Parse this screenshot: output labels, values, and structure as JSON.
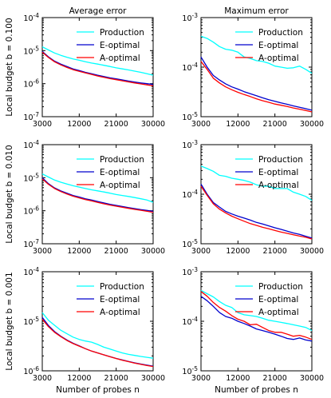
{
  "figure": {
    "col_titles": [
      "Average error",
      "Maximum error"
    ],
    "row_labels": [
      "Local budget b = 0.100",
      "Local budget b = 0.010",
      "Local budget b = 0.001"
    ],
    "xlabel": "Number of probes n",
    "legend": [
      "Production",
      "E-optimal",
      "A-optimal"
    ]
  },
  "chart_data": [
    {
      "type": "line",
      "title": "Average error",
      "ylabel": "Local budget b = 0.100",
      "xlabel": "",
      "yscale": "log",
      "ylim": [
        1e-07,
        0.0001
      ],
      "yticks": [
        "10^-7",
        "10^-6",
        "10^-5",
        "10^-4"
      ],
      "xlim": [
        3000,
        30000
      ],
      "xticks": [
        "3000",
        "12000",
        "21000",
        "30000"
      ],
      "legend_position": "top-right",
      "x": [
        3000,
        4500,
        6000,
        7500,
        9000,
        10500,
        12000,
        13500,
        15000,
        16500,
        18000,
        19500,
        21000,
        22500,
        24000,
        25500,
        27000,
        28500,
        30000
      ],
      "series": [
        {
          "name": "Production",
          "color": "#00ffff",
          "values": [
            1.3e-05,
            1.05e-05,
            8.5e-06,
            7.2e-06,
            6.3e-06,
            5.6e-06,
            5.1e-06,
            4.6e-06,
            4.2e-06,
            3.9e-06,
            3.6e-06,
            3.3e-06,
            3e-06,
            2.8e-06,
            2.6e-06,
            2.4e-06,
            2.2e-06,
            2e-06,
            1.8e-06
          ]
        },
        {
          "name": "E-optimal",
          "color": "#0000cd",
          "values": [
            9.5e-06,
            6.5e-06,
            4.8e-06,
            3.9e-06,
            3.3e-06,
            2.8e-06,
            2.5e-06,
            2.2e-06,
            2e-06,
            1.8e-06,
            1.65e-06,
            1.5e-06,
            1.4e-06,
            1.3e-06,
            1.2e-06,
            1.12e-06,
            1.05e-06,
            1e-06,
            9.5e-07
          ]
        },
        {
          "name": "A-optimal",
          "color": "#ff0000",
          "values": [
            9e-06,
            6.2e-06,
            4.6e-06,
            3.7e-06,
            3.1e-06,
            2.65e-06,
            2.35e-06,
            2.1e-06,
            1.9e-06,
            1.7e-06,
            1.55e-06,
            1.42e-06,
            1.32e-06,
            1.22e-06,
            1.13e-06,
            1.05e-06,
            9.8e-07,
            9.2e-07,
            8.6e-07
          ]
        }
      ]
    },
    {
      "type": "line",
      "title": "Maximum error",
      "ylabel": "",
      "xlabel": "",
      "yscale": "log",
      "ylim": [
        1e-05,
        0.001
      ],
      "yticks": [
        "10^-5",
        "10^-4",
        "10^-3"
      ],
      "xlim": [
        3000,
        30000
      ],
      "xticks": [
        "3000",
        "12000",
        "21000",
        "30000"
      ],
      "legend_position": "top-right",
      "x": [
        3000,
        4500,
        6000,
        7500,
        9000,
        10500,
        12000,
        13500,
        15000,
        16500,
        18000,
        19500,
        21000,
        22500,
        24000,
        25500,
        27000,
        28500,
        30000
      ],
      "series": [
        {
          "name": "Production",
          "color": "#00ffff",
          "values": [
            0.00042,
            0.00038,
            0.00032,
            0.00026,
            0.00023,
            0.00022,
            0.0002,
            0.00016,
            0.00015,
            0.000135,
            0.00013,
            0.00012,
            0.000105,
            0.0001,
            9.5e-05,
            9.7e-05,
            0.000105,
            9e-05,
            7.5e-05
          ]
        },
        {
          "name": "E-optimal",
          "color": "#0000cd",
          "values": [
            0.00016,
            0.0001,
            6.8e-05,
            5.5e-05,
            4.6e-05,
            4e-05,
            3.6e-05,
            3.2e-05,
            2.9e-05,
            2.65e-05,
            2.4e-05,
            2.2e-05,
            2.05e-05,
            1.9e-05,
            1.78e-05,
            1.65e-05,
            1.55e-05,
            1.45e-05,
            1.35e-05
          ]
        },
        {
          "name": "A-optimal",
          "color": "#ff0000",
          "values": [
            0.00013,
            9e-05,
            6e-05,
            4.8e-05,
            4e-05,
            3.5e-05,
            3.1e-05,
            2.8e-05,
            2.55e-05,
            2.3e-05,
            2.1e-05,
            1.95e-05,
            1.8e-05,
            1.7e-05,
            1.6e-05,
            1.5e-05,
            1.42e-05,
            1.33e-05,
            1.25e-05
          ]
        }
      ]
    },
    {
      "type": "line",
      "title": "",
      "ylabel": "Local budget b = 0.010",
      "xlabel": "",
      "yscale": "log",
      "ylim": [
        1e-07,
        0.0001
      ],
      "yticks": [
        "10^-7",
        "10^-6",
        "10^-5",
        "10^-4"
      ],
      "xlim": [
        3000,
        30000
      ],
      "xticks": [
        "3000",
        "12000",
        "21000",
        "30000"
      ],
      "legend_position": "top-right",
      "x": [
        3000,
        4500,
        6000,
        7500,
        9000,
        10500,
        12000,
        13500,
        15000,
        16500,
        18000,
        19500,
        21000,
        22500,
        24000,
        25500,
        27000,
        28500,
        30000
      ],
      "series": [
        {
          "name": "Production",
          "color": "#00ffff",
          "values": [
            1.3e-05,
            1.05e-05,
            8.5e-06,
            7.3e-06,
            6.4e-06,
            5.7e-06,
            5.2e-06,
            4.7e-06,
            4.3e-06,
            4e-06,
            3.7e-06,
            3.4e-06,
            3.1e-06,
            2.9e-06,
            2.7e-06,
            2.5e-06,
            2.3e-06,
            2.1e-06,
            1.8e-06
          ]
        },
        {
          "name": "E-optimal",
          "color": "#0000cd",
          "values": [
            1e-05,
            6.6e-06,
            4.9e-06,
            4e-06,
            3.4e-06,
            2.9e-06,
            2.6e-06,
            2.3e-06,
            2.1e-06,
            1.9e-06,
            1.72e-06,
            1.57e-06,
            1.45e-06,
            1.34e-06,
            1.24e-06,
            1.16e-06,
            1.08e-06,
            1.02e-06,
            9.6e-07
          ]
        },
        {
          "name": "A-optimal",
          "color": "#ff0000",
          "values": [
            9.2e-06,
            6.3e-06,
            4.7e-06,
            3.8e-06,
            3.2e-06,
            2.75e-06,
            2.45e-06,
            2.18e-06,
            1.98e-06,
            1.78e-06,
            1.62e-06,
            1.48e-06,
            1.37e-06,
            1.27e-06,
            1.18e-06,
            1.1e-06,
            1.03e-06,
            9.6e-07,
            9e-07
          ]
        }
      ]
    },
    {
      "type": "line",
      "title": "",
      "ylabel": "",
      "xlabel": "",
      "yscale": "log",
      "ylim": [
        1e-05,
        0.001
      ],
      "yticks": [
        "10^-5",
        "10^-4",
        "10^-3"
      ],
      "xlim": [
        3000,
        30000
      ],
      "xticks": [
        "3000",
        "12000",
        "21000",
        "30000"
      ],
      "legend_position": "top-right",
      "x": [
        3000,
        4500,
        6000,
        7500,
        9000,
        10500,
        12000,
        13500,
        15000,
        16500,
        18000,
        19500,
        21000,
        22500,
        24000,
        25500,
        27000,
        28500,
        30000
      ],
      "series": [
        {
          "name": "Production",
          "color": "#00ffff",
          "values": [
            0.00037,
            0.00033,
            0.00029,
            0.00024,
            0.00023,
            0.00021,
            0.0002,
            0.00019,
            0.000175,
            0.000155,
            0.000145,
            0.000145,
            0.00013,
            0.00013,
            0.00013,
            0.00011,
            0.0001,
            9e-05,
            7.5e-05
          ]
        },
        {
          "name": "E-optimal",
          "color": "#0000cd",
          "values": [
            0.00016,
            0.0001,
            6.8e-05,
            5.5e-05,
            4.5e-05,
            4e-05,
            3.6e-05,
            3.3e-05,
            3e-05,
            2.7e-05,
            2.5e-05,
            2.3e-05,
            2.1e-05,
            1.95e-05,
            1.8e-05,
            1.65e-05,
            1.55e-05,
            1.42e-05,
            1.3e-05
          ]
        },
        {
          "name": "A-optimal",
          "color": "#ff0000",
          "values": [
            0.000145,
            9.5e-05,
            6.4e-05,
            5e-05,
            4.2e-05,
            3.6e-05,
            3.2e-05,
            2.85e-05,
            2.55e-05,
            2.35e-05,
            2.15e-05,
            2e-05,
            1.85e-05,
            1.72e-05,
            1.62e-05,
            1.52e-05,
            1.43e-05,
            1.35e-05,
            1.25e-05
          ]
        }
      ]
    },
    {
      "type": "line",
      "title": "",
      "ylabel": "Local budget b = 0.001",
      "xlabel": "Number of probes n",
      "yscale": "log",
      "ylim": [
        1e-06,
        0.0001
      ],
      "yticks": [
        "10^-6",
        "10^-5",
        "10^-4"
      ],
      "xlim": [
        3000,
        30000
      ],
      "xticks": [
        "3000",
        "12000",
        "21000",
        "30000"
      ],
      "legend_position": "top-right",
      "x": [
        3000,
        4500,
        6000,
        7500,
        9000,
        10500,
        12000,
        13500,
        15000,
        16500,
        18000,
        19500,
        21000,
        22500,
        24000,
        25500,
        27000,
        28500,
        30000
      ],
      "series": [
        {
          "name": "Production",
          "color": "#00ffff",
          "values": [
            1.5e-05,
            1.05e-05,
            8.3e-06,
            6.6e-06,
            5.6e-06,
            4.8e-06,
            4.3e-06,
            4e-06,
            3.8e-06,
            3.4e-06,
            3e-06,
            2.75e-06,
            2.5e-06,
            2.3e-06,
            2.15e-06,
            2.05e-06,
            1.95e-06,
            1.87e-06,
            1.8e-06
          ]
        },
        {
          "name": "E-optimal",
          "color": "#0000cd",
          "values": [
            1.2e-05,
            8.2e-06,
            6.2e-06,
            5e-06,
            4.2e-06,
            3.6e-06,
            3.2e-06,
            2.8e-06,
            2.5e-06,
            2.3e-06,
            2.1e-06,
            1.93e-06,
            1.78e-06,
            1.66e-06,
            1.55e-06,
            1.45e-06,
            1.37e-06,
            1.3e-06,
            1.24e-06
          ]
        },
        {
          "name": "A-optimal",
          "color": "#ff0000",
          "values": [
            1.1e-05,
            7.8e-06,
            6e-06,
            4.9e-06,
            4.1e-06,
            3.55e-06,
            3.15e-06,
            2.8e-06,
            2.5e-06,
            2.3e-06,
            2.1e-06,
            1.92e-06,
            1.77e-06,
            1.64e-06,
            1.53e-06,
            1.43e-06,
            1.35e-06,
            1.28e-06,
            1.22e-06
          ]
        }
      ]
    },
    {
      "type": "line",
      "title": "",
      "ylabel": "",
      "xlabel": "Number of probes n",
      "yscale": "log",
      "ylim": [
        1e-05,
        0.001
      ],
      "yticks": [
        "10^-5",
        "10^-4",
        "10^-3"
      ],
      "xlim": [
        3000,
        30000
      ],
      "xticks": [
        "3000",
        "12000",
        "21000",
        "30000"
      ],
      "legend_position": "top-right",
      "x": [
        3000,
        4500,
        6000,
        7500,
        9000,
        10500,
        12000,
        13500,
        15000,
        16500,
        18000,
        19500,
        21000,
        22500,
        24000,
        25500,
        27000,
        28500,
        30000
      ],
      "series": [
        {
          "name": "Production",
          "color": "#00ffff",
          "values": [
            0.00042,
            0.00036,
            0.00031,
            0.00025,
            0.00021,
            0.00019,
            0.00015,
            0.000135,
            0.00013,
            0.000125,
            0.000115,
            0.000105,
            0.0001,
            9.5e-05,
            9e-05,
            8.5e-05,
            8e-05,
            7.5e-05,
            6.5e-05
          ]
        },
        {
          "name": "E-optimal",
          "color": "#0000cd",
          "values": [
            0.00032,
            0.00026,
            0.0002,
            0.00015,
            0.000125,
            0.000115,
            0.0001,
            9e-05,
            8e-05,
            7e-05,
            6.5e-05,
            6e-05,
            5.5e-05,
            5e-05,
            4.5e-05,
            4.3e-05,
            4.6e-05,
            4.2e-05,
            4e-05
          ]
        },
        {
          "name": "A-optimal",
          "color": "#ff0000",
          "values": [
            0.0004,
            0.00032,
            0.00024,
            0.00019,
            0.00016,
            0.00013,
            0.00011,
            0.0001,
            8.5e-05,
            8.7e-05,
            7.5e-05,
            6.5e-05,
            6e-05,
            6e-05,
            5.5e-05,
            5e-05,
            5.2e-05,
            4.8e-05,
            4.3e-05
          ]
        }
      ]
    }
  ]
}
